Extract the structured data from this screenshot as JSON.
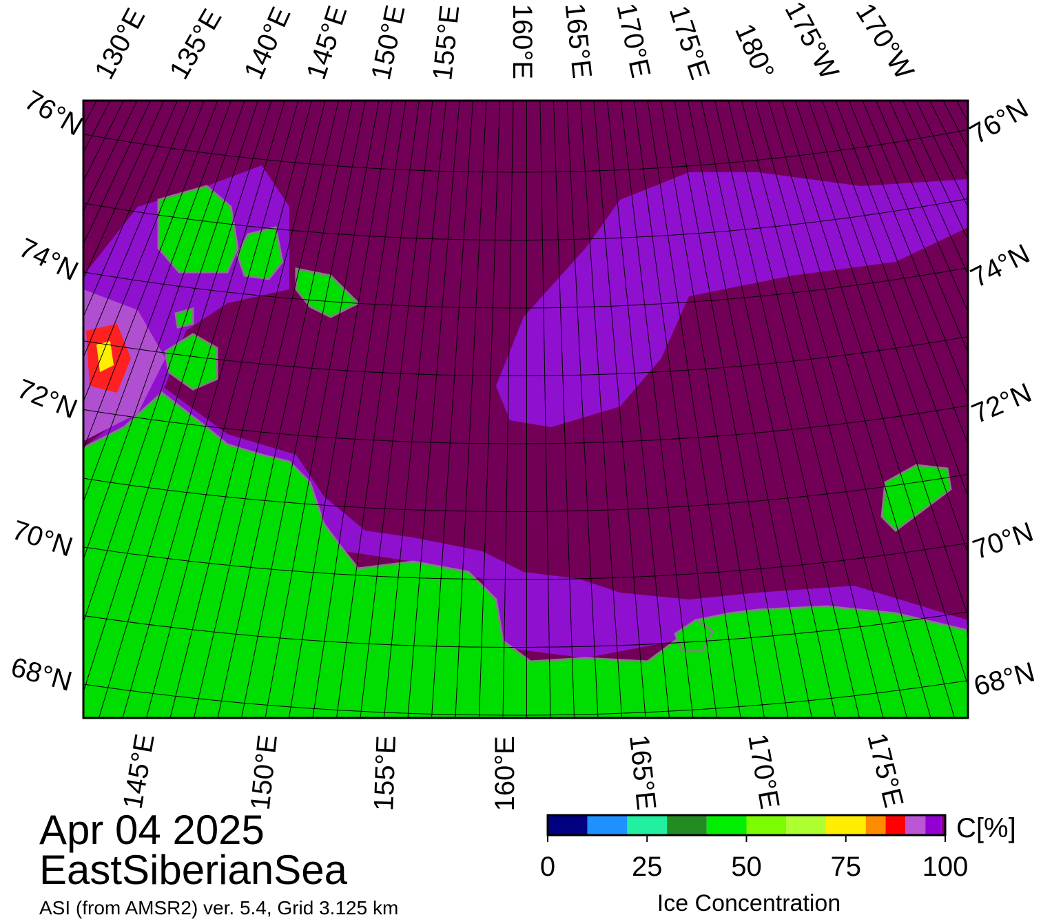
{
  "title": "Apr 04 2025",
  "region": "EastSiberianSea",
  "subtitle": "ASI (from AMSR2) ver. 5.4,  Grid 3.125 km",
  "top_lon_labels": [
    "130°E",
    "135°E",
    "140°E",
    "145°E",
    "150°E",
    "155°E",
    "160°E",
    "165°E",
    "170°E",
    "175°E",
    "180°",
    "175°W",
    "170°W"
  ],
  "bottom_lon_labels": [
    "145°E",
    "150°E",
    "155°E",
    "160°E",
    "165°E",
    "170°E",
    "175°E"
  ],
  "left_lat_labels": [
    "76°N",
    "74°N",
    "72°N",
    "70°N",
    "68°N"
  ],
  "right_lat_labels": [
    "76°N",
    "74°N",
    "72°N",
    "70°N",
    "68°N"
  ],
  "colorbar": {
    "unit": "C[%]",
    "label": "Ice Concentration",
    "bins": [
      0,
      10,
      20,
      30,
      40,
      50,
      60,
      70,
      80,
      85,
      90,
      95,
      99,
      100
    ],
    "colors": [
      "#000080",
      "#1e90ff",
      "#20f0a0",
      "#228b22",
      "#00ee00",
      "#7cfc00",
      "#adff2f",
      "#ffee00",
      "#ff8c00",
      "#ff0000",
      "#ba55d3",
      "#9400d3",
      "#800080"
    ],
    "xlim": [
      0,
      100
    ],
    "ticks": [
      0,
      25,
      50,
      75,
      100
    ]
  }
}
